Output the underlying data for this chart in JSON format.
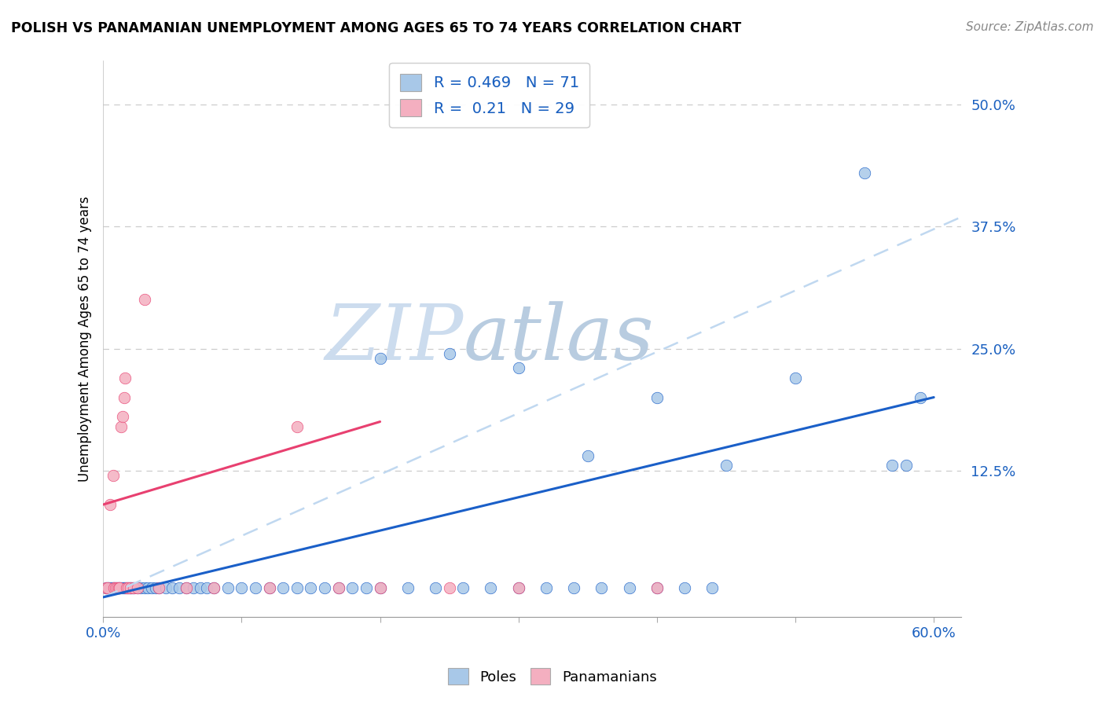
{
  "title": "POLISH VS PANAMANIAN UNEMPLOYMENT AMONG AGES 65 TO 74 YEARS CORRELATION CHART",
  "source": "Source: ZipAtlas.com",
  "ylabel": "Unemployment Among Ages 65 to 74 years",
  "xlim": [
    0.0,
    0.62
  ],
  "ylim": [
    -0.025,
    0.545
  ],
  "poles_R": 0.469,
  "poles_N": 71,
  "panamanians_R": 0.21,
  "panamanians_N": 29,
  "poles_color": "#a8c8e8",
  "panamanians_color": "#f4afc0",
  "poles_line_color": "#1a5fc8",
  "panamanians_line_color": "#e84070",
  "poles_dashed_color": "#c0d8f0",
  "watermark_zip_color": "#d0dff0",
  "watermark_atlas_color": "#c8d8e8",
  "label_color": "#1a60c0",
  "grid_color": "#cccccc",
  "poles_x": [
    0.002,
    0.003,
    0.004,
    0.005,
    0.006,
    0.007,
    0.008,
    0.009,
    0.01,
    0.011,
    0.012,
    0.013,
    0.014,
    0.015,
    0.016,
    0.017,
    0.018,
    0.019,
    0.02,
    0.021,
    0.022,
    0.025,
    0.027,
    0.03,
    0.032,
    0.035,
    0.038,
    0.04,
    0.045,
    0.05,
    0.055,
    0.06,
    0.065,
    0.07,
    0.075,
    0.08,
    0.09,
    0.1,
    0.11,
    0.12,
    0.13,
    0.14,
    0.15,
    0.16,
    0.17,
    0.18,
    0.19,
    0.2,
    0.22,
    0.24,
    0.26,
    0.28,
    0.3,
    0.32,
    0.34,
    0.36,
    0.38,
    0.4,
    0.42,
    0.44,
    0.35,
    0.4,
    0.45,
    0.3,
    0.25,
    0.2,
    0.55,
    0.5,
    0.57,
    0.58,
    0.59
  ],
  "poles_y": [
    0.005,
    0.005,
    0.005,
    0.005,
    0.005,
    0.005,
    0.005,
    0.005,
    0.005,
    0.005,
    0.005,
    0.005,
    0.005,
    0.005,
    0.005,
    0.005,
    0.005,
    0.005,
    0.005,
    0.005,
    0.005,
    0.005,
    0.005,
    0.005,
    0.005,
    0.005,
    0.005,
    0.005,
    0.005,
    0.005,
    0.005,
    0.005,
    0.005,
    0.005,
    0.005,
    0.005,
    0.005,
    0.005,
    0.005,
    0.005,
    0.005,
    0.005,
    0.005,
    0.005,
    0.005,
    0.005,
    0.005,
    0.005,
    0.005,
    0.005,
    0.005,
    0.005,
    0.005,
    0.005,
    0.005,
    0.005,
    0.005,
    0.005,
    0.005,
    0.005,
    0.14,
    0.2,
    0.13,
    0.23,
    0.245,
    0.24,
    0.43,
    0.22,
    0.13,
    0.13,
    0.2
  ],
  "pan_x": [
    0.002,
    0.003,
    0.005,
    0.007,
    0.008,
    0.009,
    0.01,
    0.011,
    0.012,
    0.013,
    0.014,
    0.015,
    0.016,
    0.017,
    0.018,
    0.02,
    0.022,
    0.025,
    0.03,
    0.04,
    0.06,
    0.08,
    0.12,
    0.14,
    0.17,
    0.2,
    0.25,
    0.3,
    0.4
  ],
  "pan_y": [
    0.005,
    0.005,
    0.09,
    0.12,
    0.005,
    0.005,
    0.005,
    0.005,
    0.005,
    0.17,
    0.18,
    0.2,
    0.22,
    0.005,
    0.005,
    0.005,
    0.005,
    0.005,
    0.3,
    0.005,
    0.005,
    0.005,
    0.005,
    0.17,
    0.005,
    0.005,
    0.005,
    0.005,
    0.005
  ],
  "poles_solid_trend_x": [
    0.0,
    0.6
  ],
  "poles_solid_trend_y": [
    -0.005,
    0.2
  ],
  "poles_dashed_trend_x": [
    0.0,
    0.62
  ],
  "poles_dashed_trend_y": [
    -0.005,
    0.385
  ],
  "pan_trend_x": [
    0.0,
    0.2
  ],
  "pan_trend_y": [
    0.09,
    0.175
  ]
}
